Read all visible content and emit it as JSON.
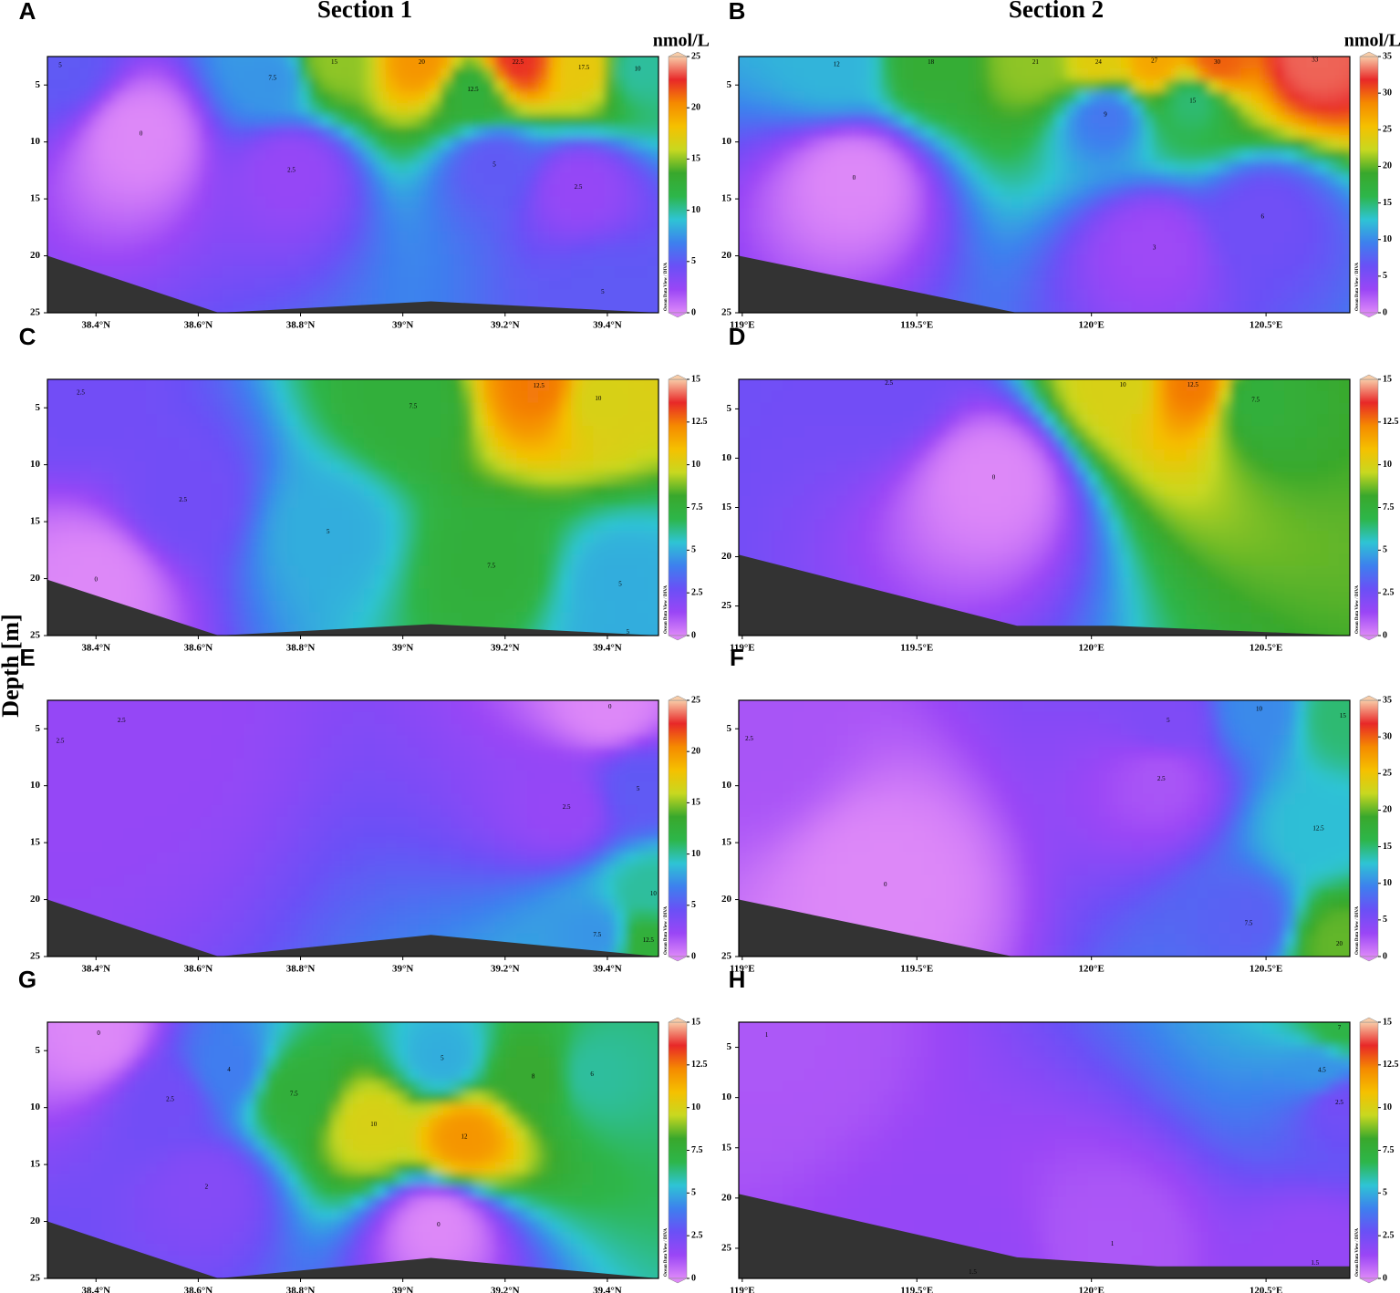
{
  "ylabel": "Depth [m]",
  "colormap": [
    "#dd88f8",
    "#9a46f6",
    "#6a50f6",
    "#3d80ee",
    "#2ec4d4",
    "#2db64a",
    "#39a82c",
    "#c8d820",
    "#f5c000",
    "#f58a00",
    "#e82828",
    "#f8cca8"
  ],
  "chart_data": [
    {
      "type": "contour",
      "panel_label": "A",
      "title": "Section 1",
      "unit": "nmol/L",
      "watermark": "Ocean Data View / DIVA",
      "xlim": [
        38.305,
        39.5
      ],
      "xticks": [
        {
          "value": 38.4,
          "label": "38.4°N"
        },
        {
          "value": 38.6,
          "label": "38.6°N"
        },
        {
          "value": 38.8,
          "label": "38.8°N"
        },
        {
          "value": 39,
          "label": "39°N"
        },
        {
          "value": 39.2,
          "label": "39.2°N"
        },
        {
          "value": 39.4,
          "label": "39.4°N"
        }
      ],
      "ylim": [
        2.5,
        25
      ],
      "yticks": [
        5,
        10,
        15,
        20,
        25
      ],
      "colorbar": {
        "lim": [
          0,
          25
        ],
        "ticks": [
          0,
          5,
          10,
          15,
          20,
          25
        ]
      },
      "contour_labels": {
        "x": [
          38.33,
          38.866,
          39.037,
          39.225,
          39.354,
          39.459,
          38.745,
          39.137,
          38.488,
          38.782,
          39.179,
          39.343,
          39.391
        ],
        "y": [
          3.3,
          3,
          3,
          3,
          3.5,
          3.6,
          4.4,
          5.4,
          9.3,
          12.5,
          12,
          14,
          23.2
        ],
        "values": [
          5,
          15,
          20,
          22.5,
          17.5,
          10,
          7.5,
          12.5,
          0,
          2.5,
          5,
          2.5,
          5
        ]
      },
      "seafloor": {
        "x": [
          38.305,
          38.64,
          39.055,
          39.5
        ],
        "depth": [
          20,
          25,
          24,
          25
        ]
      }
    },
    {
      "type": "contour",
      "panel_label": "B",
      "title": "Section 2",
      "unit": "nmol/L",
      "watermark": "Ocean Data View / DIVA",
      "xlim": [
        118.99,
        120.74
      ],
      "xticks": [
        {
          "value": 119,
          "label": "119°E"
        },
        {
          "value": 119.5,
          "label": "119.5°E"
        },
        {
          "value": 120,
          "label": "120°E"
        },
        {
          "value": 120.5,
          "label": "120.5°E"
        }
      ],
      "ylim": [
        2.5,
        25
      ],
      "yticks": [
        5,
        10,
        15,
        20,
        25
      ],
      "colorbar": {
        "lim": [
          0,
          35
        ],
        "ticks": [
          0,
          5,
          10,
          15,
          20,
          25,
          30,
          35
        ]
      },
      "contour_labels": {
        "x": [
          119.27,
          119.54,
          119.84,
          120.02,
          120.18,
          120.36,
          120.64,
          120.29,
          120.04,
          119.32,
          120.49,
          120.18
        ],
        "y": [
          3.2,
          3,
          3,
          3,
          2.9,
          3,
          2.8,
          6.4,
          7.6,
          13.2,
          16.6,
          19.3
        ],
        "values": [
          12,
          18,
          21,
          24,
          27,
          30,
          33,
          15,
          9,
          0,
          6,
          3
        ]
      },
      "seafloor": {
        "x": [
          118.99,
          119.787,
          120.74
        ],
        "depth": [
          20,
          25,
          25
        ]
      }
    },
    {
      "type": "contour",
      "panel_label": "C",
      "watermark": "Ocean Data View / DIVA",
      "xlim": [
        38.305,
        39.5
      ],
      "xticks": [
        {
          "value": 38.4,
          "label": "38.4°N"
        },
        {
          "value": 38.6,
          "label": "38.6°N"
        },
        {
          "value": 38.8,
          "label": "38.8°N"
        },
        {
          "value": 39,
          "label": "39°N"
        },
        {
          "value": 39.2,
          "label": "39.2°N"
        },
        {
          "value": 39.4,
          "label": "39.4°N"
        }
      ],
      "ylim": [
        2.5,
        25
      ],
      "yticks": [
        5,
        10,
        15,
        20,
        25
      ],
      "colorbar": {
        "lim": [
          0,
          15
        ],
        "ticks": [
          0,
          2.5,
          5,
          7.5,
          10,
          12.5,
          15
        ]
      },
      "contour_labels": {
        "x": [
          38.37,
          39.266,
          39.382,
          39.02,
          38.57,
          38.854,
          39.173,
          38.4,
          39.425,
          39.44
        ],
        "y": [
          3.7,
          3.1,
          4.2,
          4.9,
          13.1,
          15.9,
          18.9,
          20.1,
          20.5,
          24.7
        ],
        "values": [
          2.5,
          12.5,
          10,
          7.5,
          2.5,
          5,
          7.5,
          0,
          5,
          5
        ]
      },
      "seafloor": {
        "x": [
          38.305,
          38.64,
          39.055,
          39.5
        ],
        "depth": [
          20.1,
          25,
          24,
          25
        ]
      }
    },
    {
      "type": "contour",
      "panel_label": "D",
      "watermark": "Ocean Data View / DIVA",
      "xlim": [
        118.99,
        120.74
      ],
      "xticks": [
        {
          "value": 119,
          "label": "119°E"
        },
        {
          "value": 119.5,
          "label": "119.5°E"
        },
        {
          "value": 120,
          "label": "120°E"
        },
        {
          "value": 120.5,
          "label": "120.5°E"
        }
      ],
      "ylim": [
        2,
        28
      ],
      "yticks": [
        5,
        10,
        15,
        20,
        25
      ],
      "colorbar": {
        "lim": [
          0,
          15
        ],
        "ticks": [
          0,
          2.5,
          5,
          7.5,
          10,
          12.5,
          15
        ]
      },
      "contour_labels": {
        "x": [
          119.42,
          120.09,
          120.29,
          120.47,
          119.72
        ],
        "y": [
          2.4,
          2.6,
          2.6,
          4.1,
          12
        ],
        "values": [
          2.5,
          10,
          12.5,
          7.5,
          0
        ]
      },
      "seafloor": {
        "x": [
          118.99,
          119.787,
          120.06,
          120.74
        ],
        "depth": [
          19.8,
          27,
          27,
          28
        ]
      }
    },
    {
      "type": "contour",
      "panel_label": "E",
      "watermark": "Ocean Data View / DIVA",
      "xlim": [
        38.305,
        39.5
      ],
      "xticks": [
        {
          "value": 38.4,
          "label": "38.4°N"
        },
        {
          "value": 38.6,
          "label": "38.6°N"
        },
        {
          "value": 38.8,
          "label": "38.8°N"
        },
        {
          "value": 39,
          "label": "39°N"
        },
        {
          "value": 39.2,
          "label": "39.2°N"
        },
        {
          "value": 39.4,
          "label": "39.4°N"
        }
      ],
      "ylim": [
        2.5,
        25
      ],
      "yticks": [
        5,
        10,
        15,
        20,
        25
      ],
      "colorbar": {
        "lim": [
          0,
          25
        ],
        "ticks": [
          0,
          5,
          10,
          15,
          20,
          25
        ]
      },
      "contour_labels": {
        "x": [
          39.405,
          38.45,
          38.33,
          39.32,
          39.46,
          39.49,
          39.38,
          39.48
        ],
        "y": [
          3.1,
          4.3,
          6.1,
          11.9,
          10.3,
          19.5,
          23.1,
          23.6
        ],
        "values": [
          0,
          2.5,
          2.5,
          2.5,
          5,
          10,
          7.5,
          12.5
        ]
      },
      "seafloor": {
        "x": [
          38.305,
          38.64,
          39.055,
          39.5
        ],
        "depth": [
          20,
          25,
          23.1,
          25
        ]
      }
    },
    {
      "type": "contour",
      "panel_label": "F",
      "watermark": "Ocean Data View / DIVA",
      "xlim": [
        118.99,
        120.74
      ],
      "xticks": [
        {
          "value": 119,
          "label": "119°E"
        },
        {
          "value": 119.5,
          "label": "119.5°E"
        },
        {
          "value": 120,
          "label": "120°E"
        },
        {
          "value": 120.5,
          "label": "120.5°E"
        }
      ],
      "ylim": [
        2.5,
        25
      ],
      "yticks": [
        5,
        10,
        15,
        20,
        25
      ],
      "colorbar": {
        "lim": [
          0,
          35
        ],
        "ticks": [
          0,
          5,
          10,
          15,
          20,
          25,
          30,
          35
        ]
      },
      "contour_labels": {
        "x": [
          119.02,
          120.22,
          120.48,
          120.72,
          120.2,
          119.41,
          120.65,
          120.45,
          120.71
        ],
        "y": [
          5.9,
          4.3,
          3.3,
          3.9,
          9.4,
          18.7,
          13.8,
          22.1,
          23.9
        ],
        "values": [
          2.5,
          5,
          10,
          15,
          2.5,
          0,
          12.5,
          7.5,
          20
        ]
      },
      "seafloor": {
        "x": [
          118.99,
          119.775,
          120.74
        ],
        "depth": [
          20,
          25,
          25
        ]
      }
    },
    {
      "type": "contour",
      "panel_label": "G",
      "watermark": "Ocean Data View / DIVA",
      "xlim": [
        38.305,
        39.5
      ],
      "xticks": [
        {
          "value": 38.4,
          "label": "38.4°N"
        },
        {
          "value": 38.6,
          "label": "38.6°N"
        },
        {
          "value": 38.8,
          "label": "38.8°N"
        },
        {
          "value": 39,
          "label": "39°N"
        },
        {
          "value": 39.2,
          "label": "39.2°N"
        },
        {
          "value": 39.4,
          "label": "39.4°N"
        }
      ],
      "ylim": [
        2.5,
        25
      ],
      "yticks": [
        5,
        10,
        15,
        20,
        25
      ],
      "colorbar": {
        "lim": [
          0,
          15
        ],
        "ticks": [
          0,
          2.5,
          5,
          7.5,
          10,
          12.5,
          15
        ]
      },
      "contour_labels": {
        "x": [
          38.405,
          38.545,
          38.66,
          39.077,
          39.255,
          39.37,
          38.787,
          38.943,
          39.12,
          38.616,
          39.07
        ],
        "y": [
          3.5,
          9.3,
          6.7,
          5.7,
          7.3,
          7.1,
          8.8,
          11.5,
          12.6,
          17,
          20.3
        ],
        "values": [
          0,
          2.5,
          4,
          5,
          8,
          6,
          7.5,
          10,
          12,
          2,
          0
        ]
      },
      "seafloor": {
        "x": [
          38.305,
          38.64,
          39.055,
          39.5
        ],
        "depth": [
          20,
          25,
          23.2,
          25
        ]
      }
    },
    {
      "type": "contour",
      "panel_label": "H",
      "watermark": "Ocean Data View / DIVA",
      "xlim": [
        118.99,
        120.74
      ],
      "xticks": [
        {
          "value": 119,
          "label": "119°E"
        },
        {
          "value": 119.5,
          "label": "119.5°E"
        },
        {
          "value": 120,
          "label": "120°E"
        },
        {
          "value": 120.5,
          "label": "120.5°E"
        }
      ],
      "ylim": [
        2.5,
        28
      ],
      "yticks": [
        5,
        10,
        15,
        20,
        25
      ],
      "colorbar": {
        "lim": [
          0,
          15
        ],
        "ticks": [
          0,
          2.5,
          5,
          7.5,
          10,
          12.5,
          15
        ]
      },
      "contour_labels": {
        "x": [
          119.07,
          120.66,
          120.71,
          120.71,
          119.66,
          120.06,
          120.64
        ],
        "y": [
          3.8,
          7.3,
          10.5,
          3.1,
          27.4,
          24.6,
          26.5
        ],
        "values": [
          1,
          4.5,
          2.5,
          7,
          1.5,
          1,
          1.5
        ]
      },
      "seafloor": {
        "x": [
          118.99,
          119.787,
          120.19,
          120.74
        ],
        "depth": [
          19.6,
          25.9,
          26.8,
          26.8
        ]
      }
    }
  ]
}
